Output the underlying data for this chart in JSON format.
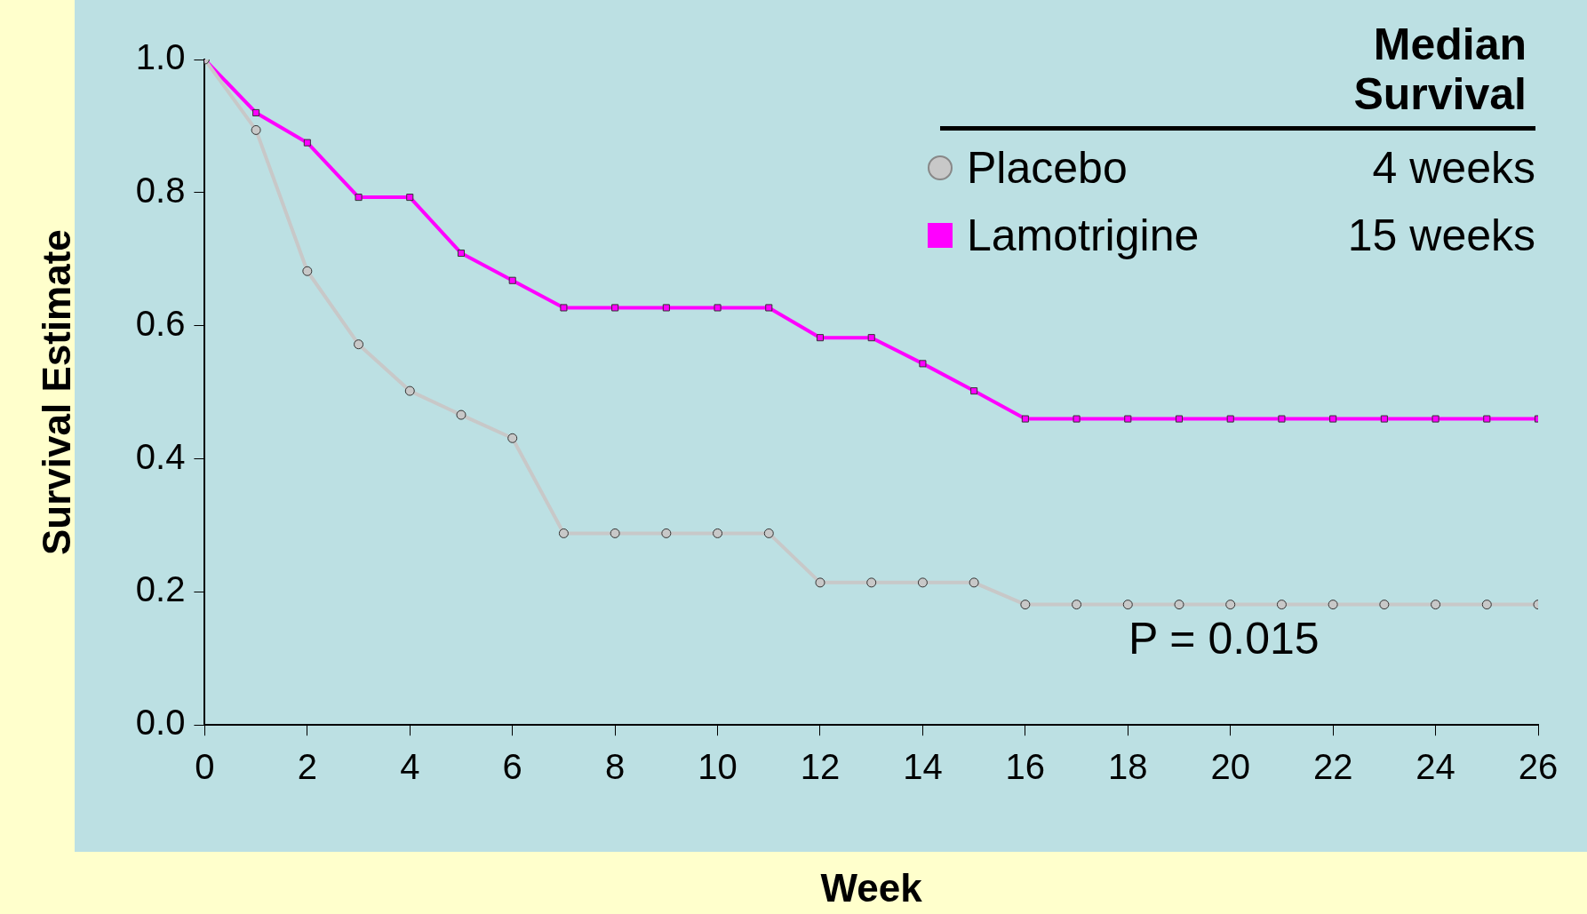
{
  "chart_data": {
    "type": "line",
    "xlabel": "Week",
    "ylabel": "Survival Estimate",
    "legend_title": "Median Survival",
    "legend": "top right",
    "x": [
      0,
      1,
      2,
      3,
      4,
      5,
      6,
      7,
      8,
      9,
      10,
      11,
      12,
      13,
      14,
      15,
      16,
      17,
      18,
      19,
      20,
      21,
      22,
      23,
      24,
      25,
      26
    ],
    "series": [
      {
        "name": "Placebo",
        "color": "#c8c8c8",
        "marker": "circle",
        "values": [
          1.0,
          0.894,
          0.682,
          0.572,
          0.502,
          0.466,
          0.431,
          0.288,
          0.288,
          0.288,
          0.288,
          0.288,
          0.214,
          0.214,
          0.214,
          0.214,
          0.181,
          0.181,
          0.181,
          0.181,
          0.181,
          0.181,
          0.181,
          0.181,
          0.181,
          0.181,
          0.181
        ]
      },
      {
        "name": "Lamotrigine",
        "color": "#ff00ff",
        "marker": "square",
        "values": [
          1.0,
          0.92,
          0.875,
          0.793,
          0.793,
          0.709,
          0.668,
          0.627,
          0.627,
          0.627,
          0.627,
          0.627,
          0.582,
          0.582,
          0.543,
          0.502,
          0.46,
          0.46,
          0.46,
          0.46,
          0.46,
          0.46,
          0.46,
          0.46,
          0.46,
          0.46,
          0.46
        ]
      }
    ],
    "annotations": [
      "4 weeks",
      "15 weeks",
      "P = 0.015"
    ],
    "xlim": [
      0,
      26
    ],
    "xticks": [
      0,
      2,
      4,
      6,
      8,
      10,
      12,
      14,
      16,
      18,
      20,
      22,
      24,
      26
    ],
    "ylim": [
      0,
      1
    ],
    "yticks": [
      {
        "value": 0,
        "label": "0.0"
      },
      0.2,
      0.4,
      0.6,
      0.8,
      {
        "value": 1,
        "label": "1.0"
      }
    ],
    "grid": false
  }
}
